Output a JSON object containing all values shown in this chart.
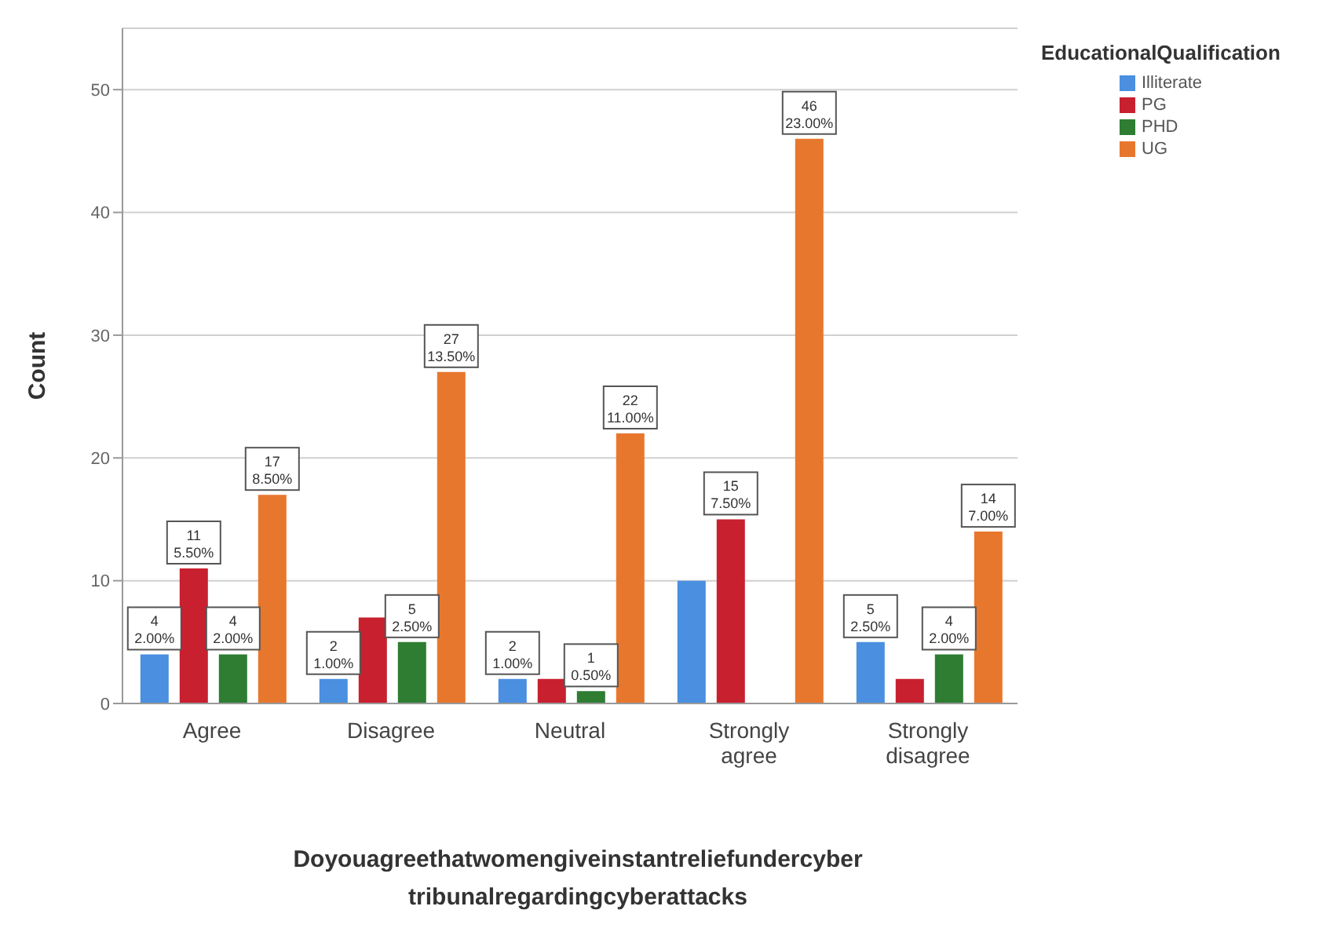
{
  "chart_data": {
    "type": "bar",
    "categories": [
      "Agree",
      "Disagree",
      "Neutral",
      "Strongly agree",
      "Strongly disagree"
    ],
    "series": [
      {
        "name": "Illiterate",
        "color": "#4a8fe0",
        "values": [
          4,
          2,
          2,
          10,
          5
        ],
        "value_labels": [
          "4\n2.00%",
          "2\n1.00%",
          "2\n1.00%",
          null,
          "5\n2.50%"
        ]
      },
      {
        "name": "PG",
        "color": "#c8202f",
        "values": [
          11,
          7,
          2,
          15,
          2
        ],
        "value_labels": [
          "11\n5.50%",
          null,
          null,
          "15\n7.50%",
          null
        ]
      },
      {
        "name": "PHD",
        "color": "#2e7d32",
        "values": [
          4,
          5,
          1,
          null,
          4
        ],
        "value_labels": [
          "4\n2.00%",
          "5\n2.50%",
          "1\n0.50%",
          null,
          "4\n2.00%"
        ]
      },
      {
        "name": "UG",
        "color": "#e8772e",
        "values": [
          17,
          27,
          22,
          46,
          14
        ],
        "value_labels": [
          "17\n8.50%",
          "27\n13.50%",
          "22\n11.00%",
          "46\n23.00%",
          "14\n7.00%"
        ]
      }
    ],
    "xlabel": "Doyouagreethatwomengiveinstantreliefundercyber tribunalregardingcyberattacks",
    "ylabel": "Count",
    "legend_title": "EducationalQualification",
    "legend": "top right",
    "ylim": [
      0,
      55
    ],
    "yticks": [
      0,
      10,
      20,
      30,
      40,
      50
    ],
    "grid": "y"
  }
}
